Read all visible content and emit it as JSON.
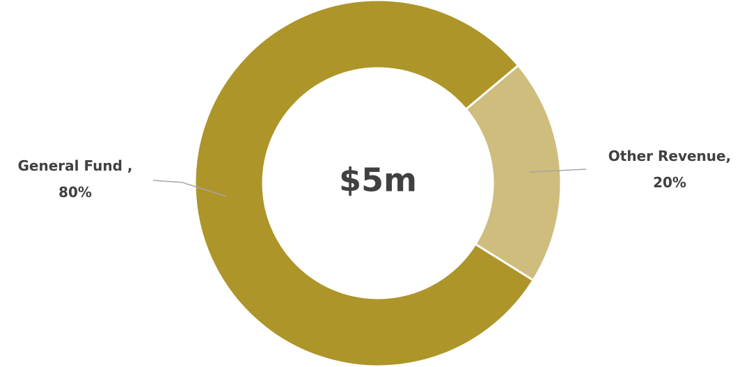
{
  "chart_data": {
    "type": "donut",
    "center_label": "$5m",
    "categories": [
      "General Fund ,",
      "Other Revenue,"
    ],
    "values": [
      80,
      20
    ],
    "value_labels": [
      "80%",
      "20%"
    ],
    "colors": [
      "#ad9529",
      "#cfbd7e"
    ]
  }
}
